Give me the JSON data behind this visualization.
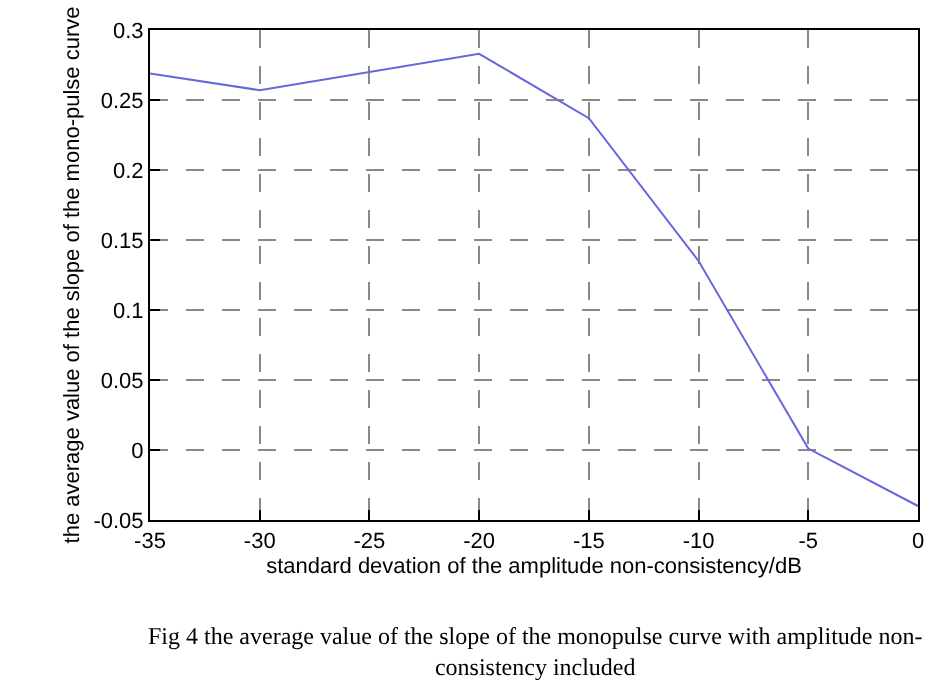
{
  "chart_data": {
    "type": "line",
    "xlabel": "standard devation of the amplitude non-consistency/dB",
    "ylabel": "the average value of the slope of the mono-pulse curve",
    "x": [
      -35,
      -30,
      -20,
      -15,
      -10,
      -5,
      0
    ],
    "series": [
      {
        "color": "#6666dd",
        "values": [
          0.269,
          0.257,
          0.283,
          0.237,
          0.135,
          0.001,
          -0.04
        ]
      }
    ],
    "xlim": [
      -35,
      0
    ],
    "xticks": [
      -35,
      -30,
      -25,
      -20,
      -15,
      -10,
      -5,
      0
    ],
    "ylim": [
      -0.05,
      0.3
    ],
    "yticks": [
      -0.05,
      0,
      0.05,
      0.1,
      0.15,
      0.2,
      0.25,
      0.3
    ],
    "grid": true,
    "legend": false,
    "marker": "none",
    "line_style": "solid",
    "annotations": [
      "Fig 4 the average value of the slope of the monopulse curve with amplitude non-consistency included"
    ]
  }
}
